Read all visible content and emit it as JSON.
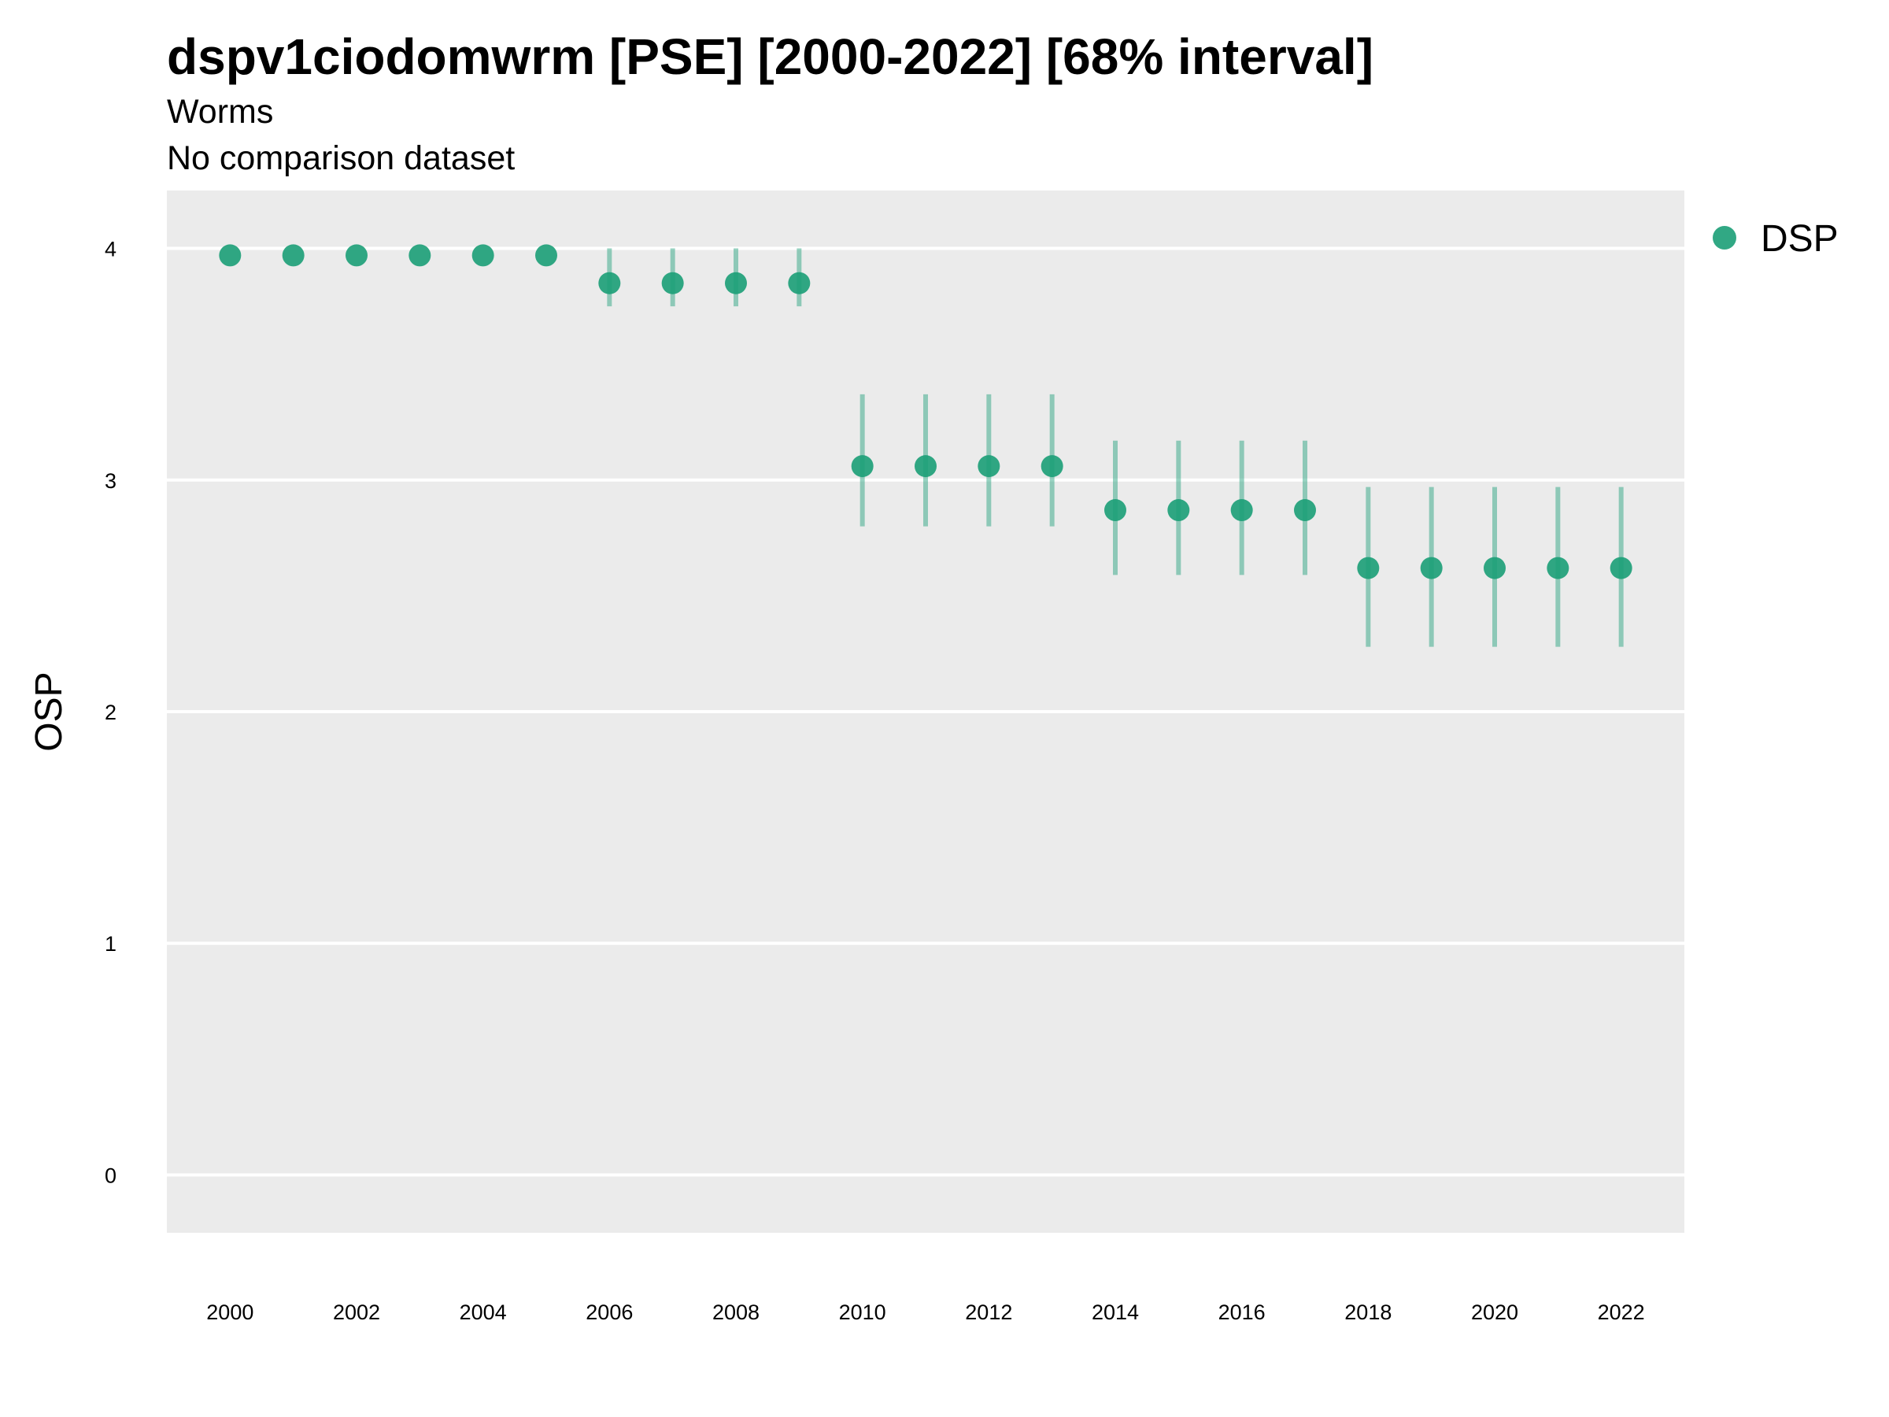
{
  "title": "dspv1ciodomwrm [PSE] [2000-2022] [68% interval]",
  "subtitle": "Worms",
  "caption_line": "No comparison dataset",
  "colors": {
    "series": "#1b9e77",
    "panel": "#ebebeb",
    "grid": "#ffffff",
    "background": "#ffffff"
  },
  "chart_data": {
    "type": "scatter",
    "title": "dspv1ciodomwrm [PSE] [2000-2022] [68% interval]",
    "subtitle": "Worms",
    "ylabel": "OSP",
    "xlabel": "",
    "ylim": [
      -0.25,
      4.25
    ],
    "xlim": [
      1999,
      2023
    ],
    "x_ticks": [
      "2000",
      "2002",
      "2004",
      "2006",
      "2008",
      "2010",
      "2012",
      "2014",
      "2016",
      "2018",
      "2020",
      "2022"
    ],
    "y_ticks": [
      "0",
      "1",
      "2",
      "3",
      "4"
    ],
    "grid": true,
    "legend_position": "right",
    "series": [
      {
        "name": "DSP",
        "x": [
          2000,
          2001,
          2002,
          2003,
          2004,
          2005,
          2006,
          2007,
          2008,
          2009,
          2010,
          2011,
          2012,
          2013,
          2014,
          2015,
          2016,
          2017,
          2018,
          2019,
          2020,
          2021,
          2022
        ],
        "y": [
          3.97,
          3.97,
          3.97,
          3.97,
          3.97,
          3.97,
          3.85,
          3.85,
          3.85,
          3.85,
          3.06,
          3.06,
          3.06,
          3.06,
          2.87,
          2.87,
          2.87,
          2.87,
          2.62,
          2.62,
          2.62,
          2.62,
          2.62
        ],
        "lower": [
          3.97,
          3.97,
          3.97,
          3.97,
          3.97,
          3.97,
          3.75,
          3.75,
          3.75,
          3.75,
          2.8,
          2.8,
          2.8,
          2.8,
          2.59,
          2.59,
          2.59,
          2.59,
          2.28,
          2.28,
          2.28,
          2.28,
          2.28
        ],
        "upper": [
          3.97,
          3.97,
          3.97,
          3.97,
          3.97,
          3.97,
          4.0,
          4.0,
          4.0,
          4.0,
          3.37,
          3.37,
          3.37,
          3.37,
          3.17,
          3.17,
          3.17,
          3.17,
          2.97,
          2.97,
          2.97,
          2.97,
          2.97
        ]
      }
    ]
  }
}
